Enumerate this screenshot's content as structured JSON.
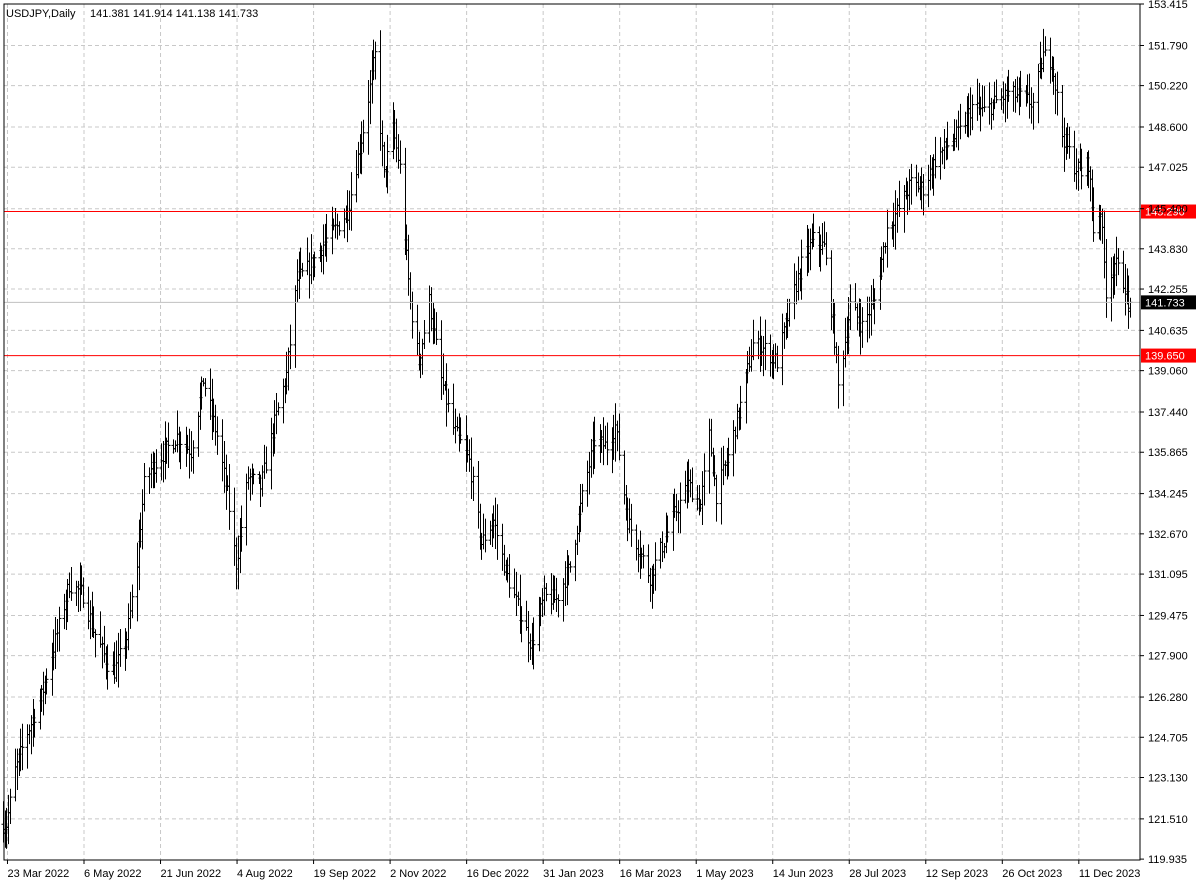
{
  "header": {
    "symbol": "USDJPY,Daily",
    "ohlc": "141.381 141.914 141.138 141.733"
  },
  "colors": {
    "background": "#ffffff",
    "grid": "#c8c8c8",
    "bars": "#000000",
    "levels": "#ff0000",
    "current_price": "#c0c0c0"
  },
  "chart_data": {
    "type": "ohlc",
    "symbol": "USDJPY",
    "timeframe": "Daily",
    "last_bar": {
      "open": 141.381,
      "high": 141.914,
      "low": 141.138,
      "close": 141.733
    },
    "ylim": [
      119.9,
      153.415
    ],
    "grid": true,
    "y_ticks": [
      "153.415",
      "151.790",
      "150.220",
      "148.600",
      "147.025",
      "145.400",
      "143.830",
      "142.255",
      "140.635",
      "139.060",
      "137.440",
      "135.865",
      "134.245",
      "132.670",
      "131.095",
      "129.475",
      "127.900",
      "126.280",
      "124.705",
      "123.130",
      "121.510",
      "119.935"
    ],
    "x_ticks": [
      "23 Mar 2022",
      "6 May 2022",
      "21 Jun 2022",
      "4 Aug 2022",
      "19 Sep 2022",
      "2 Nov 2022",
      "16 Dec 2022",
      "31 Jan 2023",
      "16 Mar 2023",
      "1 May 2023",
      "14 Jun 2023",
      "28 Jul 2023",
      "12 Sep 2023",
      "26 Oct 2023",
      "11 Dec 2023"
    ],
    "horizontal_levels": [
      {
        "value": 145.29,
        "label": "145.290"
      },
      {
        "value": 139.65,
        "label": "139.650"
      }
    ],
    "current_price": {
      "value": 141.733,
      "label": "141.733"
    },
    "price_path": [
      [
        "2022-03-23",
        121.3
      ],
      [
        "2022-03-28",
        123.4
      ],
      [
        "2022-04-04",
        124.9
      ],
      [
        "2022-04-12",
        126.3
      ],
      [
        "2022-04-20",
        128.5
      ],
      [
        "2022-04-28",
        130.7
      ],
      [
        "2022-05-06",
        130.3
      ],
      [
        "2022-05-12",
        128.9
      ],
      [
        "2022-05-20",
        127.6
      ],
      [
        "2022-05-24",
        127.3
      ],
      [
        "2022-05-31",
        128.6
      ],
      [
        "2022-06-06",
        131.5
      ],
      [
        "2022-06-10",
        134.6
      ],
      [
        "2022-06-14",
        135.2
      ],
      [
        "2022-06-21",
        135.8
      ],
      [
        "2022-06-29",
        136.5
      ],
      [
        "2022-07-07",
        135.9
      ],
      [
        "2022-07-14",
        138.7
      ],
      [
        "2022-07-22",
        136.5
      ],
      [
        "2022-07-28",
        134.2
      ],
      [
        "2022-08-02",
        131.5
      ],
      [
        "2022-08-09",
        134.9
      ],
      [
        "2022-08-16",
        134.5
      ],
      [
        "2022-08-24",
        137.0
      ],
      [
        "2022-08-31",
        138.9
      ],
      [
        "2022-09-06",
        142.6
      ],
      [
        "2022-09-13",
        143.1
      ],
      [
        "2022-09-21",
        144.0
      ],
      [
        "2022-09-28",
        144.6
      ],
      [
        "2022-10-05",
        145.3
      ],
      [
        "2022-10-14",
        148.5
      ],
      [
        "2022-10-21",
        151.4
      ],
      [
        "2022-10-26",
        146.7
      ],
      [
        "2022-10-31",
        148.5
      ],
      [
        "2022-11-04",
        147.0
      ],
      [
        "2022-11-10",
        141.7
      ],
      [
        "2022-11-15",
        139.4
      ],
      [
        "2022-11-21",
        141.8
      ],
      [
        "2022-11-28",
        138.7
      ],
      [
        "2022-12-05",
        136.8
      ],
      [
        "2022-12-14",
        135.5
      ],
      [
        "2022-12-21",
        132.3
      ],
      [
        "2022-12-28",
        133.2
      ],
      [
        "2023-01-04",
        131.2
      ],
      [
        "2023-01-12",
        129.6
      ],
      [
        "2023-01-19",
        128.3
      ],
      [
        "2023-01-26",
        130.2
      ],
      [
        "2023-02-02",
        130.1
      ],
      [
        "2023-02-10",
        131.4
      ],
      [
        "2023-02-17",
        134.1
      ],
      [
        "2023-02-24",
        136.3
      ],
      [
        "2023-03-03",
        136.1
      ],
      [
        "2023-03-08",
        136.9
      ],
      [
        "2023-03-15",
        133.2
      ],
      [
        "2023-03-22",
        132.0
      ],
      [
        "2023-03-28",
        131.0
      ],
      [
        "2023-04-04",
        132.2
      ],
      [
        "2023-04-12",
        133.6
      ],
      [
        "2023-04-19",
        134.6
      ],
      [
        "2023-04-26",
        133.8
      ],
      [
        "2023-05-01",
        136.5
      ],
      [
        "2023-05-05",
        134.2
      ],
      [
        "2023-05-12",
        135.7
      ],
      [
        "2023-05-19",
        137.7
      ],
      [
        "2023-05-26",
        140.1
      ],
      [
        "2023-06-02",
        139.9
      ],
      [
        "2023-06-09",
        139.4
      ],
      [
        "2023-06-16",
        141.4
      ],
      [
        "2023-06-23",
        143.2
      ],
      [
        "2023-06-30",
        144.2
      ],
      [
        "2023-07-06",
        143.9
      ],
      [
        "2023-07-12",
        140.3
      ],
      [
        "2023-07-14",
        138.4
      ],
      [
        "2023-07-21",
        141.6
      ],
      [
        "2023-07-28",
        140.8
      ],
      [
        "2023-08-04",
        141.8
      ],
      [
        "2023-08-11",
        144.6
      ],
      [
        "2023-08-18",
        145.4
      ],
      [
        "2023-08-25",
        146.4
      ],
      [
        "2023-09-01",
        146.2
      ],
      [
        "2023-09-08",
        147.3
      ],
      [
        "2023-09-15",
        147.9
      ],
      [
        "2023-09-22",
        148.4
      ],
      [
        "2023-09-29",
        149.4
      ],
      [
        "2023-10-06",
        149.2
      ],
      [
        "2023-10-13",
        149.6
      ],
      [
        "2023-10-20",
        149.9
      ],
      [
        "2023-10-27",
        149.8
      ],
      [
        "2023-11-03",
        149.5
      ],
      [
        "2023-11-09",
        151.4
      ],
      [
        "2023-11-14",
        151.2
      ],
      [
        "2023-11-20",
        148.3
      ],
      [
        "2023-11-27",
        147.1
      ],
      [
        "2023-12-01",
        146.8
      ],
      [
        "2023-12-05",
        147.2
      ],
      [
        "2023-12-08",
        144.6
      ],
      [
        "2023-12-12",
        145.4
      ],
      [
        "2023-12-15",
        142.2
      ],
      [
        "2023-12-20",
        143.3
      ],
      [
        "2023-12-26",
        142.4
      ],
      [
        "2023-12-28",
        141.4
      ],
      [
        "2023-12-29",
        141.7
      ]
    ]
  }
}
